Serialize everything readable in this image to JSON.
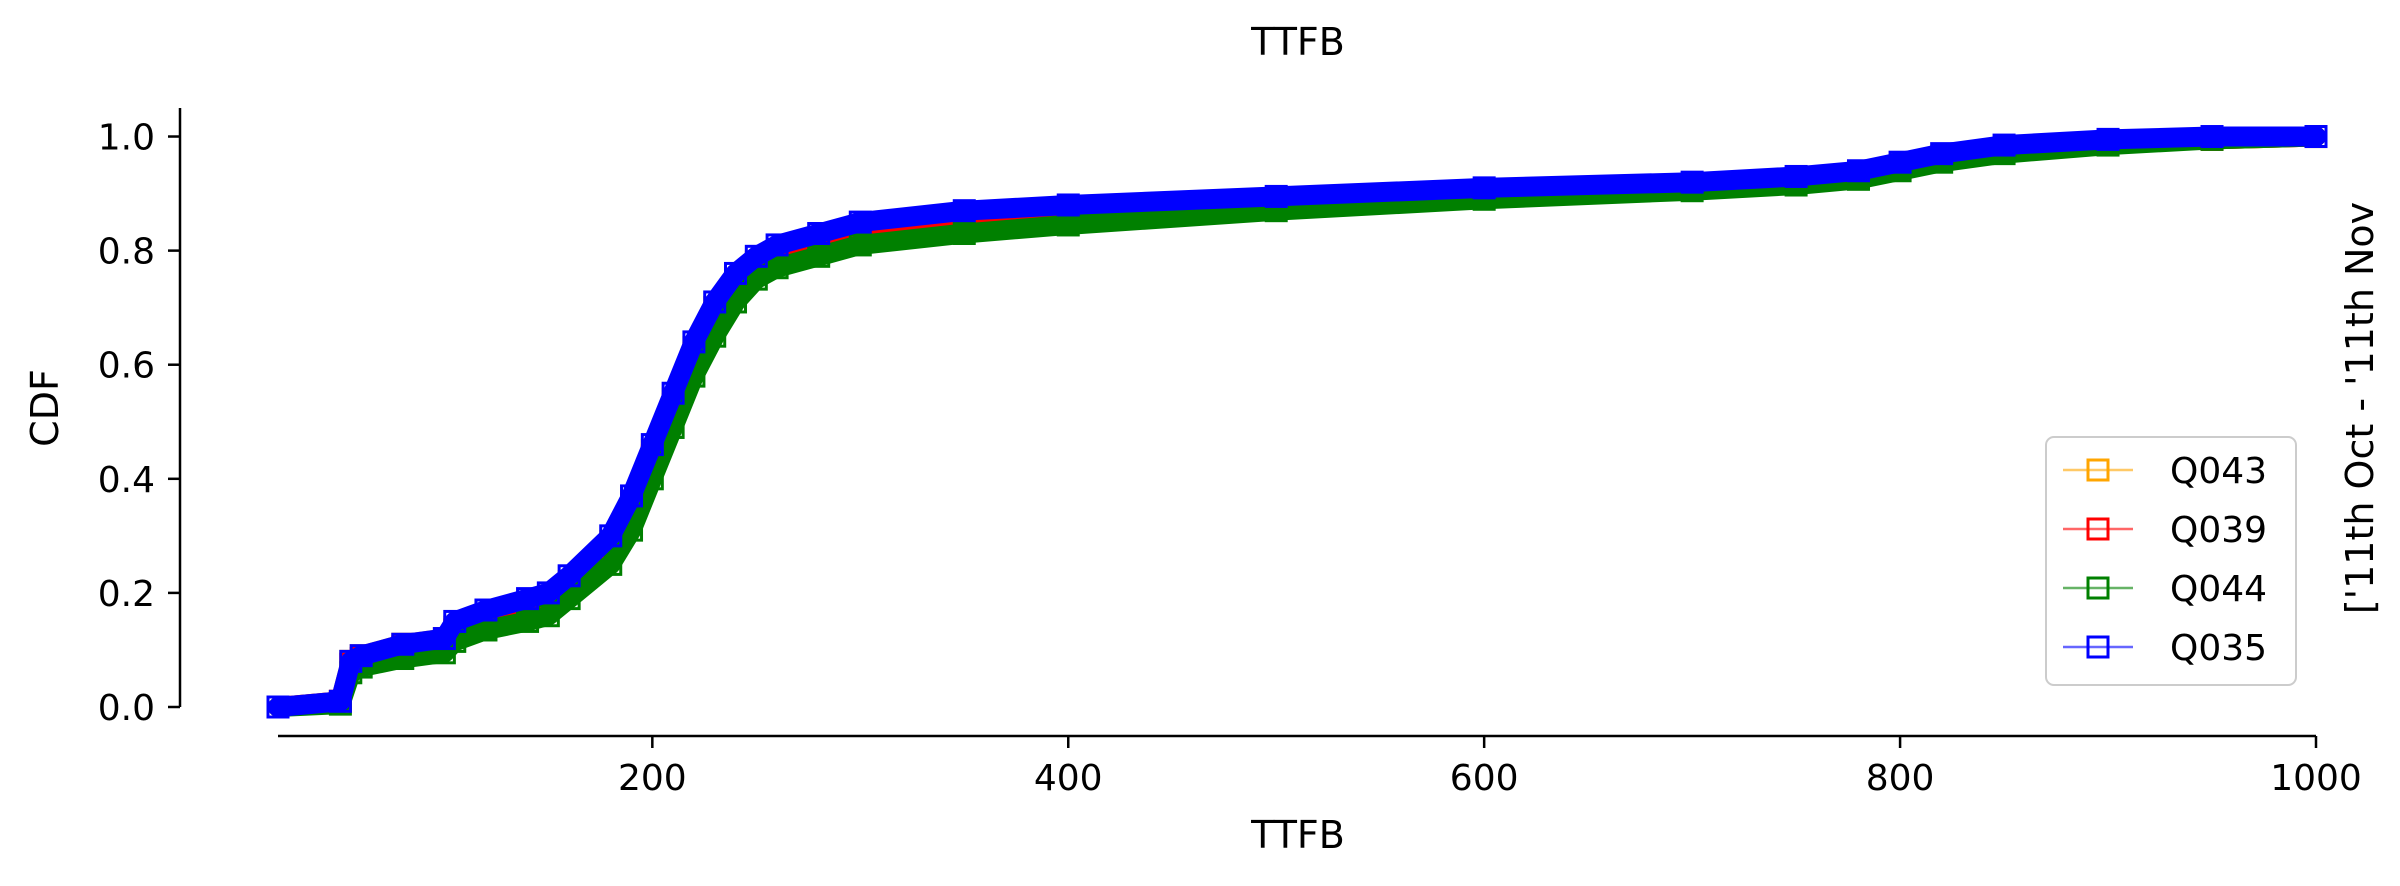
{
  "chart_data": {
    "type": "line",
    "title": "TTFB",
    "xlabel": "TTFB",
    "ylabel": "CDF",
    "side_label": "['11th Oct - '11th Nov",
    "xlim": [
      20,
      1000
    ],
    "ylim": [
      0,
      1.05
    ],
    "xticks": [
      200,
      400,
      600,
      800,
      1000
    ],
    "yticks": [
      0.0,
      0.2,
      0.4,
      0.6,
      0.8,
      1.0
    ],
    "grid": false,
    "legend_position": "lower-right",
    "series": [
      {
        "name": "Q043",
        "color": "#ffa500",
        "x": [
          20,
          50,
          55,
          60,
          80,
          100,
          105,
          120,
          140,
          150,
          160,
          180,
          190,
          200,
          210,
          220,
          230,
          240,
          250,
          260,
          280,
          300,
          350,
          400,
          500,
          600,
          700,
          750,
          780,
          800,
          820,
          850,
          900,
          950,
          1000
        ],
        "y": [
          0.0,
          0.01,
          0.08,
          0.09,
          0.11,
          0.12,
          0.14,
          0.16,
          0.18,
          0.19,
          0.22,
          0.29,
          0.36,
          0.45,
          0.54,
          0.63,
          0.7,
          0.75,
          0.78,
          0.8,
          0.82,
          0.84,
          0.86,
          0.87,
          0.89,
          0.905,
          0.915,
          0.925,
          0.935,
          0.95,
          0.965,
          0.98,
          0.99,
          0.995,
          1.0
        ]
      },
      {
        "name": "Q039",
        "color": "#ff0000",
        "x": [
          20,
          50,
          55,
          60,
          80,
          100,
          105,
          120,
          140,
          150,
          160,
          180,
          190,
          200,
          210,
          220,
          230,
          240,
          250,
          260,
          280,
          300,
          350,
          400,
          500,
          600,
          700,
          750,
          780,
          800,
          820,
          850,
          900,
          950,
          1000
        ],
        "y": [
          0.0,
          0.01,
          0.075,
          0.085,
          0.105,
          0.115,
          0.135,
          0.155,
          0.175,
          0.185,
          0.215,
          0.285,
          0.355,
          0.44,
          0.53,
          0.62,
          0.69,
          0.745,
          0.775,
          0.795,
          0.815,
          0.835,
          0.855,
          0.865,
          0.885,
          0.9,
          0.91,
          0.92,
          0.93,
          0.945,
          0.96,
          0.975,
          0.99,
          0.995,
          1.0
        ]
      },
      {
        "name": "Q044",
        "color": "#008000",
        "x": [
          20,
          50,
          55,
          60,
          80,
          100,
          105,
          120,
          140,
          150,
          160,
          180,
          190,
          200,
          210,
          220,
          230,
          240,
          250,
          260,
          280,
          300,
          350,
          400,
          500,
          600,
          700,
          750,
          780,
          800,
          820,
          850,
          900,
          950,
          1000
        ],
        "y": [
          0.0,
          0.005,
          0.06,
          0.07,
          0.085,
          0.095,
          0.115,
          0.135,
          0.15,
          0.16,
          0.19,
          0.25,
          0.31,
          0.4,
          0.49,
          0.58,
          0.65,
          0.71,
          0.75,
          0.77,
          0.79,
          0.81,
          0.83,
          0.845,
          0.87,
          0.89,
          0.905,
          0.915,
          0.925,
          0.94,
          0.955,
          0.97,
          0.985,
          0.995,
          1.0
        ]
      },
      {
        "name": "Q035",
        "color": "#0000ff",
        "x": [
          20,
          50,
          55,
          60,
          80,
          100,
          105,
          120,
          140,
          150,
          160,
          180,
          190,
          200,
          210,
          220,
          230,
          240,
          250,
          260,
          280,
          300,
          350,
          400,
          500,
          600,
          700,
          750,
          780,
          800,
          820,
          850,
          900,
          950,
          1000
        ],
        "y": [
          0.0,
          0.01,
          0.08,
          0.09,
          0.11,
          0.12,
          0.15,
          0.17,
          0.19,
          0.2,
          0.23,
          0.3,
          0.37,
          0.46,
          0.55,
          0.64,
          0.71,
          0.76,
          0.79,
          0.81,
          0.83,
          0.85,
          0.87,
          0.88,
          0.895,
          0.91,
          0.92,
          0.93,
          0.94,
          0.955,
          0.97,
          0.985,
          0.995,
          1.0,
          1.0
        ]
      }
    ]
  }
}
